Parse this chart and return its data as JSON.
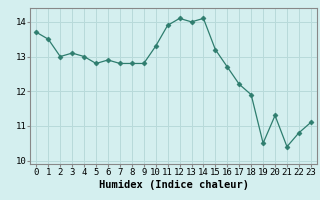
{
  "x": [
    0,
    1,
    2,
    3,
    4,
    5,
    6,
    7,
    8,
    9,
    10,
    11,
    12,
    13,
    14,
    15,
    16,
    17,
    18,
    19,
    20,
    21,
    22,
    23
  ],
  "y": [
    13.7,
    13.5,
    13.0,
    13.1,
    13.0,
    12.8,
    12.9,
    12.8,
    12.8,
    12.8,
    13.3,
    13.9,
    14.1,
    14.0,
    14.1,
    13.2,
    12.7,
    12.2,
    11.9,
    10.5,
    11.3,
    10.4,
    10.8,
    11.1
  ],
  "line_color": "#2e7d6e",
  "marker": "D",
  "marker_size": 2.5,
  "bg_color": "#d4efef",
  "grid_color": "#b8dada",
  "xlabel": "Humidex (Indice chaleur)",
  "ylim": [
    9.9,
    14.4
  ],
  "xlim": [
    -0.5,
    23.5
  ],
  "yticks": [
    10,
    11,
    12,
    13,
    14
  ],
  "xticks": [
    0,
    1,
    2,
    3,
    4,
    5,
    6,
    7,
    8,
    9,
    10,
    11,
    12,
    13,
    14,
    15,
    16,
    17,
    18,
    19,
    20,
    21,
    22,
    23
  ],
  "tick_fontsize": 6.5,
  "xlabel_fontsize": 7.5,
  "spine_color": "#888888"
}
